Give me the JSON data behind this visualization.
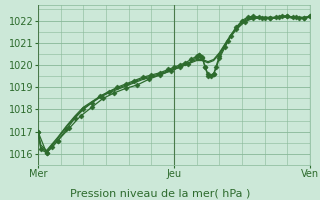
{
  "xlabel": "Pression niveau de la mer( hPa )",
  "bg_color": "#cce8d8",
  "grid_color": "#88b898",
  "line_color": "#2d6b2d",
  "ylim": [
    1015.5,
    1022.7
  ],
  "xlim": [
    0,
    96
  ],
  "xtick_positions": [
    0,
    48,
    96
  ],
  "xtick_labels": [
    "Mer",
    "Jeu",
    "Ven"
  ],
  "ytick_positions": [
    1016,
    1017,
    1018,
    1019,
    1020,
    1021,
    1022
  ],
  "ytick_labels": [
    "1016",
    "1017",
    "1018",
    "1019",
    "1020",
    "1021",
    "1022"
  ],
  "series1_x": [
    0,
    1,
    3,
    5,
    7,
    10,
    13,
    16,
    19,
    22,
    25,
    28,
    31,
    34,
    37,
    40,
    43,
    46,
    48,
    50,
    52,
    54,
    56,
    57,
    58,
    59,
    60,
    61,
    62,
    63,
    64,
    66,
    68,
    70,
    72,
    74,
    76,
    78,
    80,
    82,
    84,
    86,
    88,
    90,
    92,
    94,
    96
  ],
  "series1_y": [
    1017.0,
    1016.2,
    1016.05,
    1016.3,
    1016.6,
    1017.1,
    1017.6,
    1018.0,
    1018.3,
    1018.6,
    1018.8,
    1019.0,
    1019.15,
    1019.3,
    1019.45,
    1019.55,
    1019.65,
    1019.8,
    1019.9,
    1020.0,
    1020.1,
    1020.25,
    1020.4,
    1020.45,
    1020.3,
    1019.9,
    1019.6,
    1019.5,
    1019.6,
    1019.9,
    1020.3,
    1020.8,
    1021.3,
    1021.7,
    1022.0,
    1022.15,
    1022.2,
    1022.15,
    1022.1,
    1022.1,
    1022.15,
    1022.2,
    1022.2,
    1022.15,
    1022.1,
    1022.1,
    1022.2
  ],
  "series2_x": [
    0,
    1,
    3,
    5,
    7,
    10,
    13,
    16,
    19,
    22,
    25,
    28,
    31,
    34,
    37,
    40,
    43,
    46,
    48,
    50,
    52,
    54,
    56,
    58,
    60,
    62,
    64,
    66,
    68,
    70,
    72,
    74,
    76,
    78,
    80,
    82,
    84,
    86,
    88,
    90,
    92,
    94,
    96
  ],
  "series2_y": [
    1017.0,
    1016.3,
    1016.1,
    1016.4,
    1016.7,
    1017.2,
    1017.65,
    1018.05,
    1018.3,
    1018.55,
    1018.75,
    1018.9,
    1019.05,
    1019.2,
    1019.35,
    1019.45,
    1019.55,
    1019.7,
    1019.8,
    1019.9,
    1020.0,
    1020.1,
    1020.2,
    1020.2,
    1020.1,
    1020.2,
    1020.5,
    1020.9,
    1021.3,
    1021.65,
    1021.9,
    1022.05,
    1022.1,
    1022.1,
    1022.1,
    1022.1,
    1022.1,
    1022.15,
    1022.15,
    1022.1,
    1022.1,
    1022.1,
    1022.15
  ],
  "series3_x": [
    0,
    1,
    3,
    5,
    7,
    10,
    13,
    16,
    19,
    22,
    25,
    28,
    31,
    34,
    37,
    40,
    43,
    46,
    48,
    50,
    52,
    54,
    56,
    58,
    60,
    62,
    64,
    66,
    68,
    70,
    72,
    74,
    76,
    78,
    80,
    82,
    84,
    86,
    88,
    90,
    92,
    94,
    96
  ],
  "series3_y": [
    1017.0,
    1016.4,
    1016.15,
    1016.45,
    1016.75,
    1017.25,
    1017.7,
    1018.1,
    1018.35,
    1018.6,
    1018.8,
    1018.95,
    1019.1,
    1019.25,
    1019.4,
    1019.5,
    1019.6,
    1019.75,
    1019.85,
    1019.95,
    1020.05,
    1020.15,
    1020.25,
    1020.25,
    1020.15,
    1020.25,
    1020.55,
    1020.95,
    1021.35,
    1021.7,
    1021.95,
    1022.1,
    1022.15,
    1022.15,
    1022.15,
    1022.15,
    1022.15,
    1022.2,
    1022.2,
    1022.15,
    1022.15,
    1022.15,
    1022.2
  ],
  "series4_x": [
    0,
    3,
    7,
    11,
    15,
    19,
    23,
    27,
    31,
    35,
    39,
    43,
    47,
    50,
    53,
    56,
    57,
    58,
    59,
    60,
    62,
    64,
    67,
    70,
    73,
    76,
    79,
    82,
    85,
    88,
    91,
    94,
    96
  ],
  "series4_y": [
    1017.0,
    1016.05,
    1016.6,
    1017.15,
    1017.7,
    1018.1,
    1018.5,
    1018.75,
    1018.95,
    1019.1,
    1019.35,
    1019.55,
    1019.75,
    1019.9,
    1020.05,
    1020.35,
    1020.45,
    1020.35,
    1019.9,
    1019.5,
    1019.6,
    1020.4,
    1021.1,
    1021.6,
    1021.95,
    1022.1,
    1022.1,
    1022.1,
    1022.15,
    1022.2,
    1022.15,
    1022.1,
    1022.2
  ],
  "marker": "D",
  "markersize": 2.5,
  "linewidth": 0.9
}
